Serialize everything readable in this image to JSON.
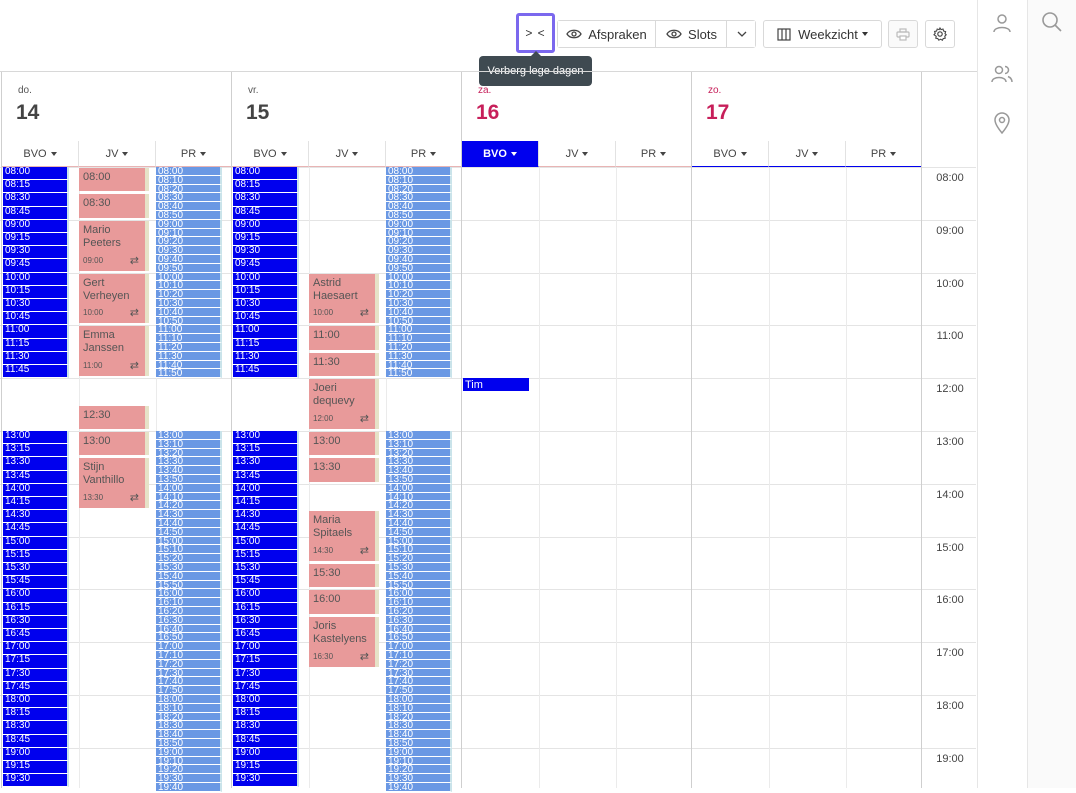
{
  "toolbar": {
    "collapse_label": "> <",
    "afspraken_label": "Afspraken",
    "slots_label": "Slots",
    "weekview_label": "Weekzicht",
    "tooltip": "Verberg lege dagen"
  },
  "days": [
    {
      "name": "do.",
      "number": "14",
      "weekend": false
    },
    {
      "name": "vr.",
      "number": "15",
      "weekend": false
    },
    {
      "name": "za.",
      "number": "16",
      "weekend": true
    },
    {
      "name": "zo.",
      "number": "17",
      "weekend": true
    }
  ],
  "resources": [
    "BVO",
    "JV",
    "PR"
  ],
  "hours": [
    "08:00",
    "09:00",
    "10:00",
    "11:00",
    "12:00",
    "13:00",
    "14:00",
    "15:00",
    "16:00",
    "17:00",
    "18:00",
    "19:00"
  ],
  "bvo_slot_times": [
    "08:00",
    "08:15",
    "08:30",
    "08:45",
    "09:00",
    "09:15",
    "09:30",
    "09:45",
    "10:00",
    "10:15",
    "10:30",
    "10:45",
    "11:00",
    "11:15",
    "11:30",
    "11:45",
    "13:00",
    "13:15",
    "13:30",
    "13:45",
    "14:00",
    "14:15",
    "14:30",
    "14:45",
    "15:00",
    "15:15",
    "15:30",
    "15:45",
    "16:00",
    "16:15",
    "16:30",
    "16:45",
    "17:00",
    "17:15",
    "17:30",
    "17:45",
    "18:00",
    "18:15",
    "18:30",
    "18:45",
    "19:00",
    "19:15",
    "19:30"
  ],
  "pr_slot_times": [
    "08:00",
    "08:10",
    "08:20",
    "08:30",
    "08:40",
    "08:50",
    "09:00",
    "09:10",
    "09:20",
    "09:30",
    "09:40",
    "09:50",
    "10:00",
    "10:10",
    "10:20",
    "10:30",
    "10:40",
    "10:50",
    "11:00",
    "11:10",
    "11:20",
    "11:30",
    "11:40",
    "11:50",
    "13:00",
    "13:10",
    "13:20",
    "13:30",
    "13:40",
    "13:50",
    "14:00",
    "14:10",
    "14:20",
    "14:30",
    "14:40",
    "14:50",
    "15:00",
    "15:10",
    "15:20",
    "15:30",
    "15:40",
    "15:50",
    "16:00",
    "16:10",
    "16:20",
    "16:30",
    "16:40",
    "16:50",
    "17:00",
    "17:10",
    "17:20",
    "17:30",
    "17:40",
    "17:50",
    "18:00",
    "18:10",
    "18:20",
    "18:30",
    "18:40",
    "18:50",
    "19:00",
    "19:10",
    "19:20",
    "19:30",
    "19:40"
  ],
  "appointments_jv_thu": [
    {
      "title": "08:00",
      "sub": ""
    },
    {
      "title": "08:30",
      "sub": ""
    },
    {
      "title": "Mario Peeters",
      "sub": "09:00"
    },
    {
      "title": "Gert Verheyen",
      "sub": "10:00"
    },
    {
      "title": "Emma Janssen",
      "sub": "11:00"
    },
    {
      "title": "12:30",
      "sub": ""
    },
    {
      "title": "13:00",
      "sub": ""
    },
    {
      "title": "Stijn Vanthillo",
      "sub": "13:30"
    }
  ],
  "appointments_jv_fri": [
    {
      "title": "Astrid Haesaert",
      "sub": "10:00"
    },
    {
      "title": "11:00",
      "sub": ""
    },
    {
      "title": "11:30",
      "sub": ""
    },
    {
      "title": "Joeri dequevy",
      "sub": "12:00"
    },
    {
      "title": "13:00",
      "sub": ""
    },
    {
      "title": "13:30",
      "sub": ""
    },
    {
      "title": "Maria Spitaels",
      "sub": "14:30"
    },
    {
      "title": "15:30",
      "sub": ""
    },
    {
      "title": "16:00",
      "sub": ""
    },
    {
      "title": "Joris Kastelyens",
      "sub": "16:30"
    }
  ],
  "saturday_event": "Tim",
  "colors": {
    "bvo": "#0000ee",
    "pr": "#6a98e4",
    "appointment": "#e89a9a",
    "weekend": "#c71f5a",
    "focus": "#7b68ee"
  }
}
